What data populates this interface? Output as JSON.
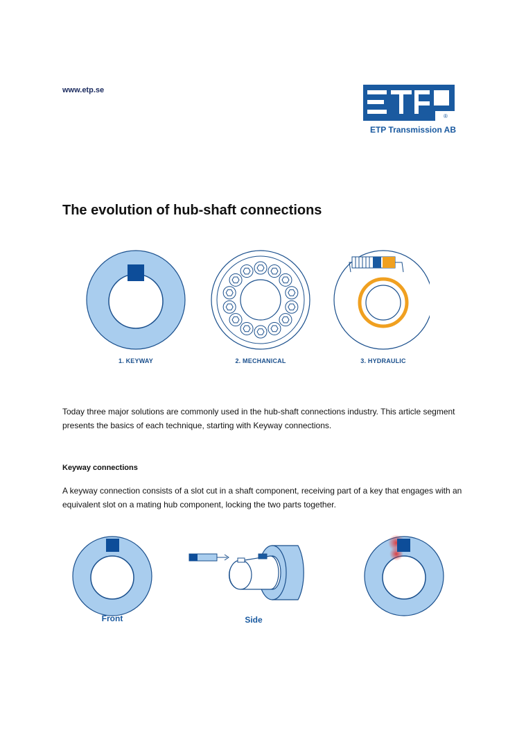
{
  "header": {
    "url": "www.etp.se",
    "company": "ETP Transmission AB",
    "logo_text": "ETP",
    "logo_registered": "®"
  },
  "article": {
    "title": "The evolution of hub-shaft connections",
    "figure1_labels": [
      "1. KEYWAY",
      "2. MECHANICAL",
      "3. HYDRAULIC"
    ],
    "intro": "Today three major solutions are commonly used in the hub-shaft connections industry. This article segment presents the basics of each technique, starting with Keyway connections.",
    "section_heading": "Keyway connections",
    "section_body": "A keyway connection consists of a slot cut in a shaft component, receiving part of a key that engages with an equivalent slot on a mating hub component, locking the two parts together.",
    "figure2_labels": {
      "front": "Front",
      "side": "Side"
    }
  },
  "colors": {
    "hub_fill": "#a9cdee",
    "outline": "#1a4f8c",
    "key": "#0d4d99",
    "hydraulic": "#f0a020",
    "stress": "#e03030"
  }
}
